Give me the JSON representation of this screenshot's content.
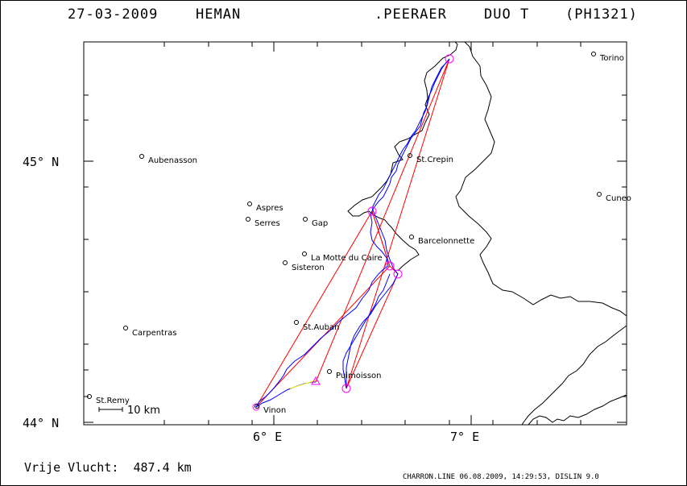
{
  "header": {
    "date": "27-03-2009",
    "pilot": "HEMAN",
    "copilot": ".PEERAER",
    "glider": "DUO T",
    "registration": "(PH1321)"
  },
  "axes": {
    "lat_labels": [
      "45° N",
      "44° N"
    ],
    "lon_labels": [
      "6° E",
      "7° E"
    ]
  },
  "scale_bar": {
    "label": "10 km"
  },
  "towns": [
    {
      "name": "Torino"
    },
    {
      "name": "Aubenasson"
    },
    {
      "name": "St.Crepin"
    },
    {
      "name": "Cuneo"
    },
    {
      "name": "Aspres"
    },
    {
      "name": "Serres"
    },
    {
      "name": "Gap"
    },
    {
      "name": "Barcelonnette"
    },
    {
      "name": "La Motte du Caire"
    },
    {
      "name": "Sisteron"
    },
    {
      "name": "Carpentras"
    },
    {
      "name": "St.Auban"
    },
    {
      "name": "Puimoisson"
    },
    {
      "name": "St.Remy"
    },
    {
      "name": "Vinon"
    }
  ],
  "distance": {
    "label": "Vrije Vlucht:",
    "value": "487.4 km"
  },
  "footer": "CHARRON.LINE 06.08.2009, 14:29:53, DISLIN 9.0",
  "colors": {
    "track": "#0000ff",
    "task_legs": "#ff0000",
    "turnpoints": "#ff00ff",
    "final_glide": "#ffff00",
    "border": "#000000"
  }
}
